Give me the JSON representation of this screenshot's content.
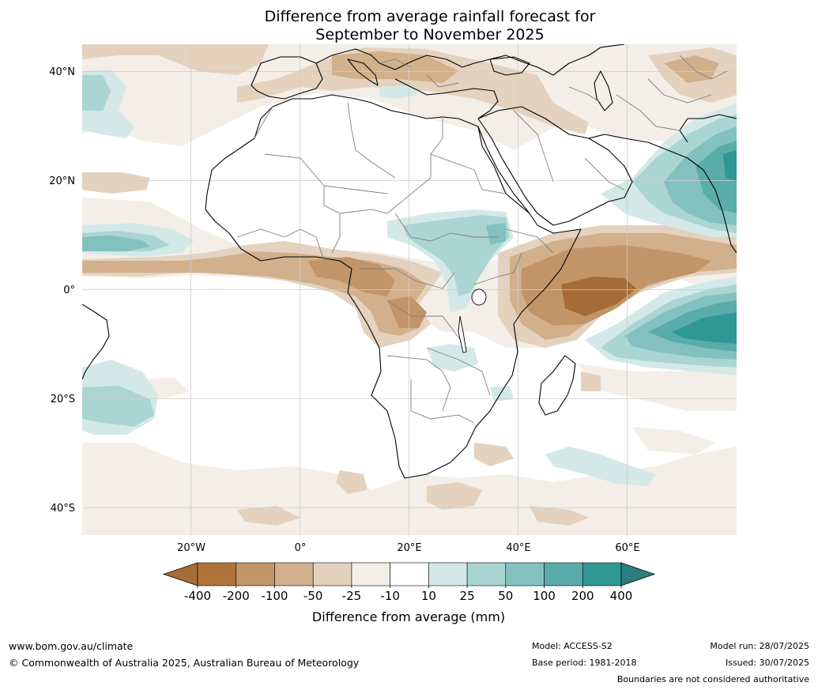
{
  "title": {
    "line1": "Difference from average rainfall forecast for",
    "line2": "September to November 2025"
  },
  "map": {
    "projection": "plate-carree",
    "lon_range": [
      -40,
      80
    ],
    "lat_range": [
      -45,
      45
    ],
    "lat_ticks": [
      {
        "lat": 40,
        "label": "40°N"
      },
      {
        "lat": 20,
        "label": "20°N"
      },
      {
        "lat": 0,
        "label": "0°"
      },
      {
        "lat": -20,
        "label": "20°S"
      },
      {
        "lat": -40,
        "label": "40°S"
      }
    ],
    "lon_ticks": [
      {
        "lon": -20,
        "label": "20°W"
      },
      {
        "lon": 0,
        "label": "0°"
      },
      {
        "lon": 20,
        "label": "20°E"
      },
      {
        "lon": 40,
        "label": "40°E"
      },
      {
        "lon": 60,
        "label": "60°E"
      }
    ],
    "grid": true
  },
  "colorbar": {
    "title": "Difference from average (mm)",
    "ticks": [
      "-400",
      "-200",
      "-100",
      "-50",
      "-25",
      "-10",
      "10",
      "25",
      "50",
      "100",
      "200",
      "400"
    ],
    "colors": [
      "#a56c35",
      "#b0743a",
      "#c19567",
      "#d2b08c",
      "#e4d2bf",
      "#f3eee7",
      "#ffffff",
      "#d4e9e7",
      "#aad5d3",
      "#82c1bf",
      "#5aaca9",
      "#2f9893",
      "#2b7e7b"
    ],
    "extend": "both"
  },
  "footer": {
    "url": "www.bom.gov.au/climate",
    "copyright": "© Commonwealth of Australia 2025, Australian Bureau of Meteorology",
    "model": "Model: ACCESS-S2",
    "base_period": "Base period: 1981-2018",
    "model_run": "Model run: 28/07/2025",
    "issued": "Issued: 30/07/2025",
    "disclaimer": "Boundaries are not considered authoritative"
  }
}
